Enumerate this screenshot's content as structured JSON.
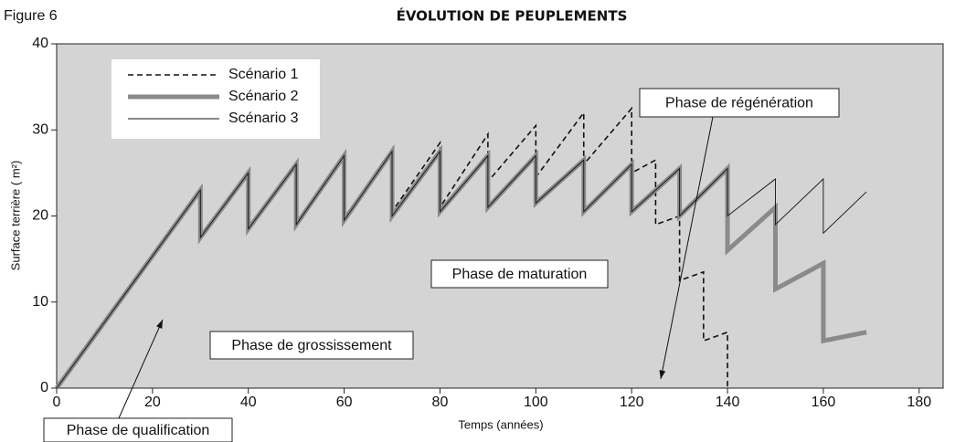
{
  "chart_data": {
    "type": "line",
    "figure_label": "Figure 6",
    "title": "ÉVOLUTION DE PEUPLEMENTS",
    "x_label": "Temps (années)",
    "y_label": "Surface terrière ( m²)",
    "xlim": [
      0,
      185
    ],
    "ylim": [
      0,
      40
    ],
    "xticks": [
      0,
      20,
      40,
      60,
      80,
      100,
      120,
      140,
      160,
      180
    ],
    "yticks": [
      0,
      10,
      20,
      30,
      40
    ],
    "background": "#d4d4d4",
    "series": [
      {
        "name": "Scénario 1",
        "color": "#111111",
        "style": "dashed",
        "x": [
          0,
          30,
          30,
          40,
          40,
          50,
          50,
          60,
          60,
          70,
          70,
          80,
          80,
          90,
          90,
          100,
          100,
          110,
          110,
          120,
          120,
          125,
          125,
          130,
          130,
          135,
          135,
          140,
          140
        ],
        "values": [
          0,
          23,
          17.5,
          25,
          18.5,
          26,
          19,
          27,
          19.5,
          27.5,
          20.5,
          28.5,
          21,
          29.5,
          24,
          30.5,
          24.5,
          32,
          26,
          32.5,
          25,
          26.5,
          19,
          20,
          12.5,
          13.5,
          5.5,
          6.5,
          0
        ]
      },
      {
        "name": "Scénario 2",
        "color": "#8a8a8a",
        "style": "thick",
        "x": [
          0,
          30,
          30,
          40,
          40,
          50,
          50,
          60,
          60,
          70,
          70,
          80,
          80,
          90,
          90,
          100,
          100,
          110,
          110,
          120,
          120,
          130,
          130,
          140,
          140,
          150,
          150,
          160,
          160,
          169
        ],
        "values": [
          0,
          23,
          17.5,
          25,
          18.5,
          26,
          19,
          27,
          19.5,
          27.5,
          20,
          27.5,
          20.5,
          27,
          21,
          27,
          21.5,
          26.5,
          20.5,
          26,
          20.5,
          25.5,
          20,
          25.5,
          16,
          21,
          11.5,
          14.5,
          5.5,
          6.5
        ]
      },
      {
        "name": "Scénario 3",
        "color": "#111111",
        "style": "thin",
        "x": [
          0,
          30,
          30,
          40,
          40,
          50,
          50,
          60,
          60,
          70,
          70,
          80,
          80,
          90,
          90,
          100,
          100,
          110,
          110,
          120,
          120,
          130,
          130,
          140,
          140,
          150,
          150,
          160,
          160,
          169
        ],
        "values": [
          0,
          23,
          17.5,
          25,
          18.5,
          26,
          19,
          27,
          19.5,
          27.5,
          20,
          27.5,
          20.5,
          27,
          21,
          27,
          21.5,
          26.5,
          20.5,
          26,
          20.5,
          25.5,
          20,
          25.5,
          20,
          24.3,
          19,
          24.3,
          18,
          22.8
        ]
      }
    ],
    "annotations": [
      "Phase de régénération",
      "Phase de maturation",
      "Phase de grossissement",
      "Phase de qualification"
    ]
  }
}
